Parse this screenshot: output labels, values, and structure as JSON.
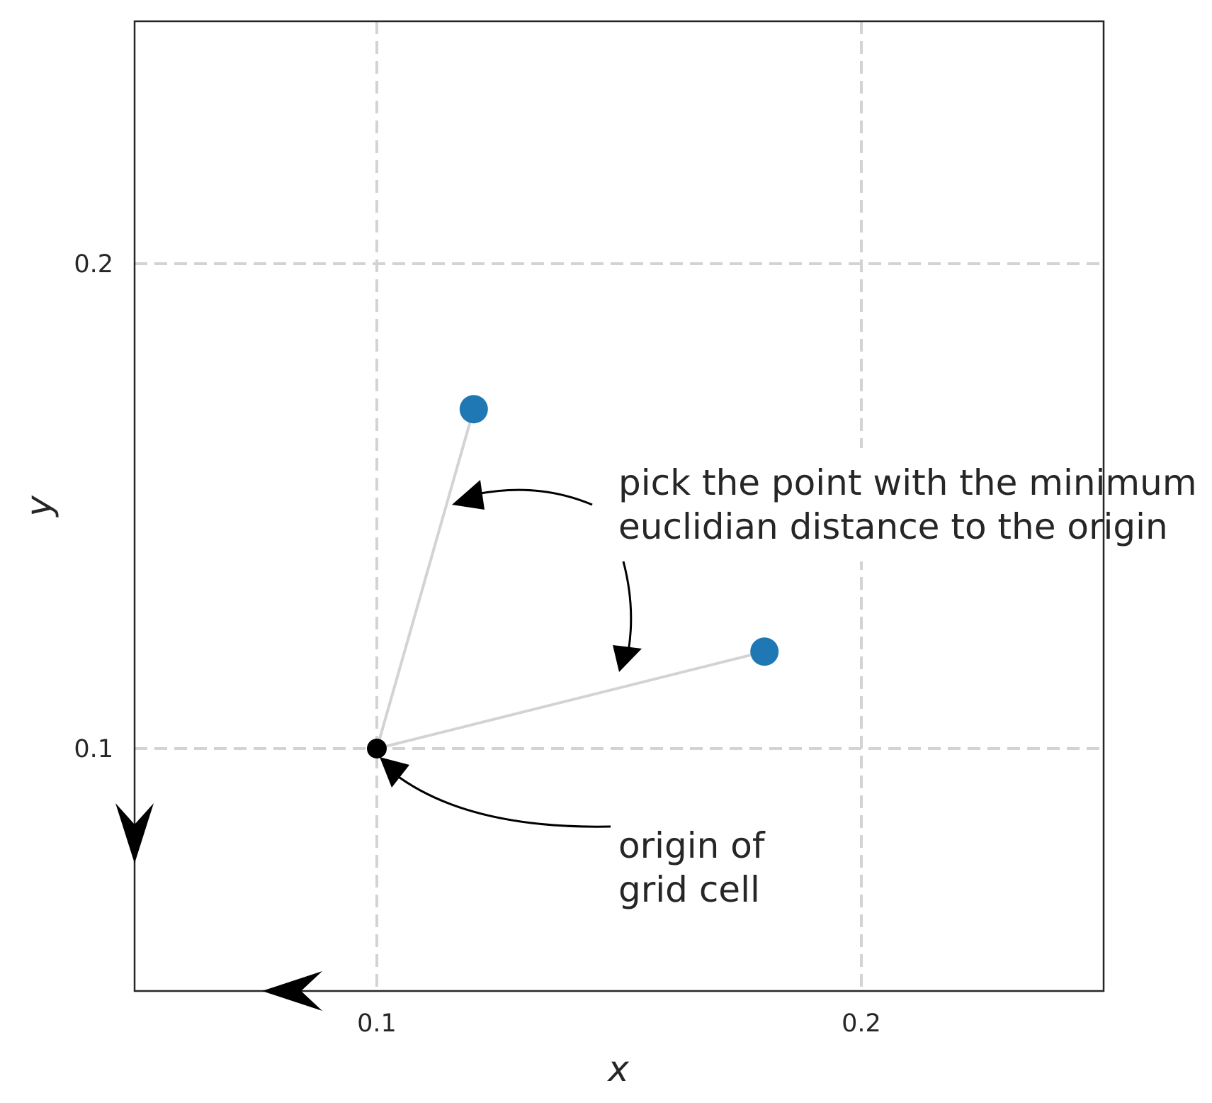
{
  "chart_data": {
    "type": "scatter",
    "xlabel": "x",
    "ylabel": "y",
    "xlim": [
      0.05,
      0.25
    ],
    "ylim": [
      0.05,
      0.25
    ],
    "x_ticks": [
      {
        "value": 0.1,
        "label": "0.1"
      },
      {
        "value": 0.2,
        "label": "0.2"
      }
    ],
    "y_ticks": [
      {
        "value": 0.1,
        "label": "0.1"
      },
      {
        "value": 0.2,
        "label": "0.2"
      }
    ],
    "grid": true,
    "grid_style": "dashed",
    "origin": {
      "x": 0.1,
      "y": 0.1
    },
    "points": [
      {
        "x": 0.12,
        "y": 0.17
      },
      {
        "x": 0.18,
        "y": 0.12
      }
    ],
    "annotations": [
      {
        "lines": [
          "pick the point with the minimum",
          "euclidian distance to the origin"
        ]
      },
      {
        "lines": [
          "origin of",
          "grid cell"
        ]
      }
    ],
    "colors": {
      "points": "#1f77b4",
      "origin": "#000000",
      "grid": "#d3d3d3",
      "connector": "#d3d3d3",
      "frame": "#262626"
    }
  }
}
